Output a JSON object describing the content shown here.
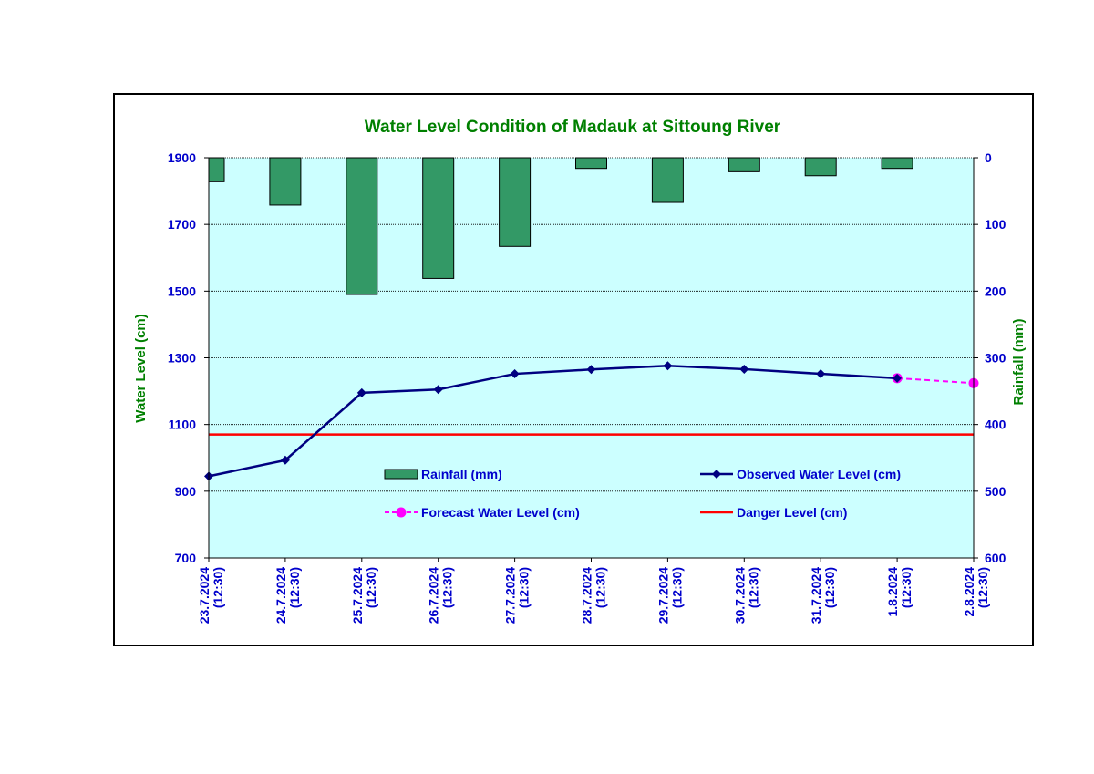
{
  "chart_data": {
    "type": "bar+line",
    "title": "Water Level Condition  of Madauk at Sittoung River",
    "categories": [
      "23.7.2024\n(12:30)",
      "24.7.2024\n(12:30)",
      "25.7.2024\n(12:30)",
      "26.7.2024\n(12:30)",
      "27.7.2024\n(12:30)",
      "28.7.2024\n(12:30)",
      "29.7.2024\n(12:30)",
      "30.7.2024\n(12:30)",
      "31.7.2024\n(12:30)",
      "1.8.2024\n(12:30)",
      "2.8.2024\n(12:30)"
    ],
    "ylabel_left": "Water Level (cm)",
    "ylabel_right": "Rainfall (mm)",
    "ylim_left": [
      700,
      1900
    ],
    "yticks_left": [
      700,
      900,
      1100,
      1300,
      1500,
      1700,
      1900
    ],
    "ylim_right": [
      0,
      600
    ],
    "yticks_right": [
      0,
      100,
      200,
      300,
      400,
      500,
      600
    ],
    "right_axis_reversed": true,
    "grid": true,
    "series": [
      {
        "name": "Rainfall (mm)",
        "kind": "bar",
        "axis": "right",
        "color": "#339966",
        "values": [
          36,
          71,
          205,
          181,
          133,
          16,
          67,
          21,
          27,
          16,
          null
        ]
      },
      {
        "name": "Observed Water Level (cm)",
        "kind": "line",
        "axis": "left",
        "color": "#000080",
        "marker": "diamond",
        "values": [
          945,
          993,
          1195,
          1205,
          1252,
          1265,
          1276,
          1266,
          1252,
          1239,
          null
        ]
      },
      {
        "name": "Forecast Water Level (cm)",
        "kind": "line",
        "axis": "left",
        "color": "#ff00ff",
        "marker": "circle",
        "dashed": true,
        "values": [
          null,
          null,
          null,
          null,
          null,
          null,
          null,
          null,
          null,
          1239,
          1224
        ]
      },
      {
        "name": "Danger Level (cm)",
        "kind": "line",
        "axis": "left",
        "color": "#ff0000",
        "constant": 1070
      }
    ]
  },
  "colors": {
    "plot_background": "#ccffff",
    "title": "#008000",
    "axis_label": "#008000",
    "tick_label": "#0000cc",
    "legend_text": "#0000cc"
  }
}
